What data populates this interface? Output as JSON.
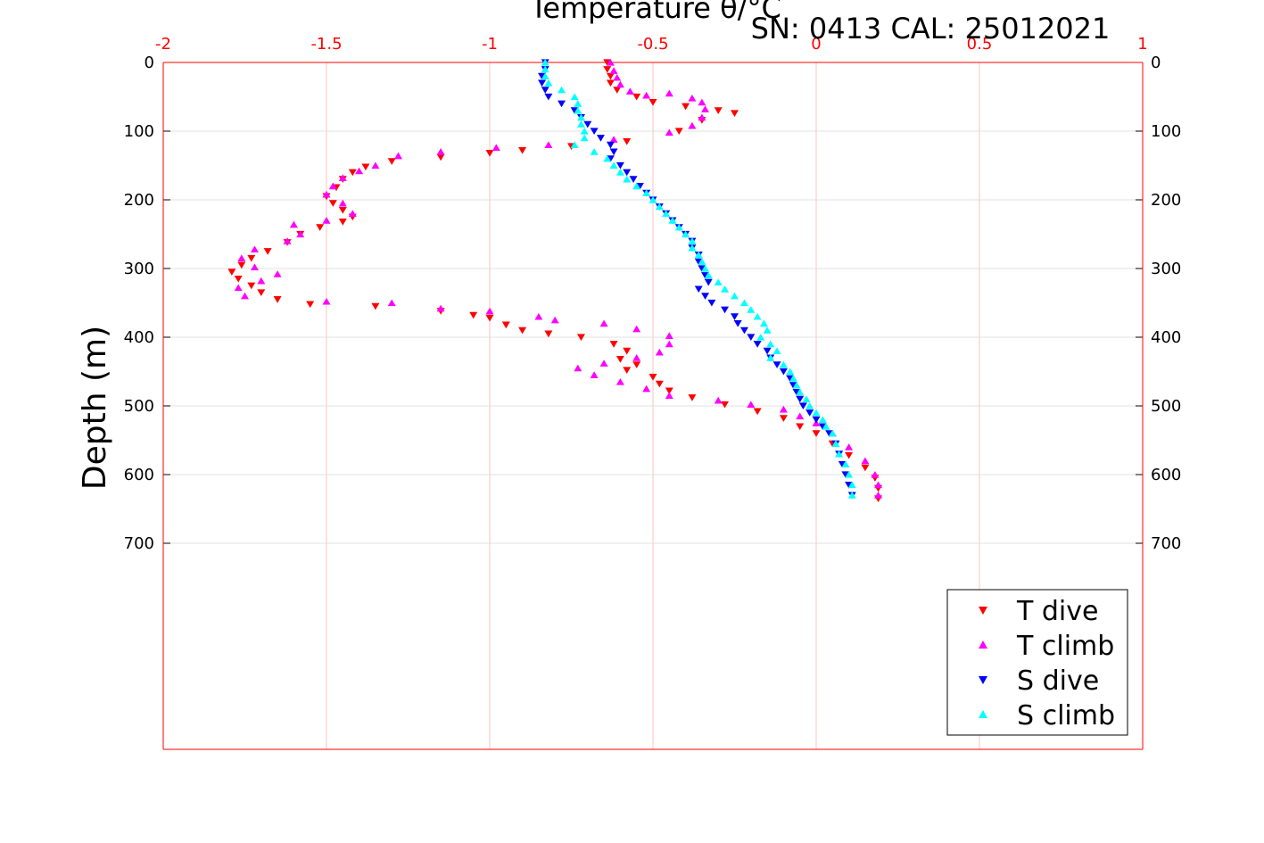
{
  "chart_data": {
    "type": "scatter",
    "title": "Temperature θ/°C",
    "subtitle": "SN: 0413  CAL: 25012021",
    "xlabel": "",
    "ylabel": "Depth (m)",
    "xlim": [
      -2,
      1
    ],
    "ylim": [
      0,
      1000
    ],
    "y_reversed": true,
    "x_ticks": [
      "-2",
      "-1.5",
      "-1",
      "-0.5",
      "0",
      "0.5",
      "1"
    ],
    "x_tick_values": [
      -2,
      -1.5,
      -1,
      -0.5,
      0,
      0.5,
      1
    ],
    "y_ticks": [
      "0",
      "100",
      "200",
      "300",
      "400",
      "500",
      "600",
      "700"
    ],
    "y_tick_values": [
      0,
      100,
      200,
      300,
      400,
      500,
      600,
      700
    ],
    "axis_color": "#ff0000",
    "grid": true,
    "legend_position": "bottom-right",
    "series": [
      {
        "name": "T dive",
        "marker": "triangle-down",
        "color": "#ff0000",
        "points": [
          [
            -0.64,
            0
          ],
          [
            -0.64,
            10
          ],
          [
            -0.63,
            20
          ],
          [
            -0.63,
            30
          ],
          [
            -0.61,
            40
          ],
          [
            -0.55,
            50
          ],
          [
            -0.5,
            58
          ],
          [
            -0.4,
            64
          ],
          [
            -0.3,
            70
          ],
          [
            -0.25,
            74
          ],
          [
            -0.35,
            84
          ],
          [
            -0.42,
            100
          ],
          [
            -0.58,
            115
          ],
          [
            -0.75,
            122
          ],
          [
            -0.9,
            128
          ],
          [
            -1.0,
            132
          ],
          [
            -1.15,
            138
          ],
          [
            -1.3,
            144
          ],
          [
            -1.38,
            152
          ],
          [
            -1.42,
            160
          ],
          [
            -1.45,
            170
          ],
          [
            -1.47,
            182
          ],
          [
            -1.5,
            195
          ],
          [
            -1.48,
            205
          ],
          [
            -1.45,
            215
          ],
          [
            -1.42,
            225
          ],
          [
            -1.45,
            232
          ],
          [
            -1.52,
            240
          ],
          [
            -1.58,
            250
          ],
          [
            -1.62,
            262
          ],
          [
            -1.68,
            275
          ],
          [
            -1.73,
            285
          ],
          [
            -1.76,
            295
          ],
          [
            -1.79,
            305
          ],
          [
            -1.77,
            315
          ],
          [
            -1.73,
            325
          ],
          [
            -1.7,
            335
          ],
          [
            -1.65,
            345
          ],
          [
            -1.55,
            352
          ],
          [
            -1.35,
            355
          ],
          [
            -1.15,
            362
          ],
          [
            -1.05,
            368
          ],
          [
            -1.0,
            372
          ],
          [
            -0.95,
            382
          ],
          [
            -0.9,
            390
          ],
          [
            -0.82,
            395
          ],
          [
            -0.72,
            400
          ],
          [
            -0.62,
            410
          ],
          [
            -0.58,
            420
          ],
          [
            -0.6,
            432
          ],
          [
            -0.55,
            440
          ],
          [
            -0.58,
            448
          ],
          [
            -0.5,
            458
          ],
          [
            -0.48,
            468
          ],
          [
            -0.45,
            478
          ],
          [
            -0.38,
            488
          ],
          [
            -0.28,
            498
          ],
          [
            -0.18,
            508
          ],
          [
            -0.1,
            518
          ],
          [
            -0.05,
            530
          ],
          [
            0.0,
            540
          ],
          [
            0.05,
            555
          ],
          [
            0.1,
            572
          ],
          [
            0.15,
            590
          ],
          [
            0.18,
            605
          ],
          [
            0.19,
            620
          ],
          [
            0.19,
            635
          ]
        ]
      },
      {
        "name": "T climb",
        "marker": "triangle-up",
        "color": "#ff00ff",
        "points": [
          [
            -0.63,
            0
          ],
          [
            -0.62,
            12
          ],
          [
            -0.61,
            22
          ],
          [
            -0.6,
            32
          ],
          [
            -0.57,
            42
          ],
          [
            -0.52,
            48
          ],
          [
            -0.45,
            45
          ],
          [
            -0.38,
            52
          ],
          [
            -0.35,
            58
          ],
          [
            -0.34,
            68
          ],
          [
            -0.35,
            80
          ],
          [
            -0.38,
            92
          ],
          [
            -0.45,
            102
          ],
          [
            -0.62,
            112
          ],
          [
            -0.82,
            120
          ],
          [
            -0.98,
            124
          ],
          [
            -1.15,
            130
          ],
          [
            -1.28,
            136
          ],
          [
            -1.35,
            150
          ],
          [
            -1.4,
            158
          ],
          [
            -1.45,
            168
          ],
          [
            -1.48,
            180
          ],
          [
            -1.5,
            192
          ],
          [
            -1.45,
            205
          ],
          [
            -1.42,
            220
          ],
          [
            -1.5,
            230
          ],
          [
            -1.6,
            236
          ],
          [
            -1.58,
            250
          ],
          [
            -1.62,
            260
          ],
          [
            -1.72,
            272
          ],
          [
            -1.76,
            285
          ],
          [
            -1.72,
            298
          ],
          [
            -1.65,
            308
          ],
          [
            -1.7,
            318
          ],
          [
            -1.77,
            328
          ],
          [
            -1.75,
            340
          ],
          [
            -1.5,
            348
          ],
          [
            -1.3,
            350
          ],
          [
            -1.15,
            358
          ],
          [
            -1.0,
            362
          ],
          [
            -0.85,
            370
          ],
          [
            -0.8,
            375
          ],
          [
            -0.65,
            380
          ],
          [
            -0.55,
            388
          ],
          [
            -0.45,
            398
          ],
          [
            -0.45,
            410
          ],
          [
            -0.48,
            422
          ],
          [
            -0.55,
            430
          ],
          [
            -0.65,
            438
          ],
          [
            -0.73,
            445
          ],
          [
            -0.68,
            455
          ],
          [
            -0.6,
            465
          ],
          [
            -0.52,
            475
          ],
          [
            -0.45,
            485
          ],
          [
            -0.3,
            492
          ],
          [
            -0.2,
            498
          ],
          [
            -0.1,
            505
          ],
          [
            -0.05,
            515
          ],
          [
            0.0,
            525
          ],
          [
            0.05,
            540
          ],
          [
            0.1,
            560
          ],
          [
            0.15,
            580
          ],
          [
            0.18,
            600
          ],
          [
            0.19,
            615
          ],
          [
            0.19,
            630
          ]
        ]
      },
      {
        "name": "S dive",
        "marker": "triangle-down",
        "color": "#0000ff",
        "points": [
          [
            -0.83,
            0
          ],
          [
            -0.83,
            10
          ],
          [
            -0.84,
            20
          ],
          [
            -0.84,
            30
          ],
          [
            -0.83,
            40
          ],
          [
            -0.82,
            50
          ],
          [
            -0.78,
            60
          ],
          [
            -0.74,
            70
          ],
          [
            -0.72,
            80
          ],
          [
            -0.7,
            90
          ],
          [
            -0.68,
            100
          ],
          [
            -0.66,
            110
          ],
          [
            -0.63,
            120
          ],
          [
            -0.62,
            130
          ],
          [
            -0.63,
            140
          ],
          [
            -0.6,
            150
          ],
          [
            -0.58,
            160
          ],
          [
            -0.56,
            170
          ],
          [
            -0.54,
            180
          ],
          [
            -0.52,
            190
          ],
          [
            -0.5,
            200
          ],
          [
            -0.48,
            210
          ],
          [
            -0.46,
            220
          ],
          [
            -0.44,
            230
          ],
          [
            -0.42,
            240
          ],
          [
            -0.4,
            250
          ],
          [
            -0.38,
            260
          ],
          [
            -0.38,
            270
          ],
          [
            -0.36,
            280
          ],
          [
            -0.36,
            290
          ],
          [
            -0.35,
            300
          ],
          [
            -0.34,
            310
          ],
          [
            -0.33,
            320
          ],
          [
            -0.36,
            330
          ],
          [
            -0.34,
            340
          ],
          [
            -0.32,
            350
          ],
          [
            -0.28,
            360
          ],
          [
            -0.25,
            370
          ],
          [
            -0.24,
            380
          ],
          [
            -0.22,
            390
          ],
          [
            -0.2,
            400
          ],
          [
            -0.18,
            410
          ],
          [
            -0.15,
            420
          ],
          [
            -0.14,
            430
          ],
          [
            -0.12,
            440
          ],
          [
            -0.1,
            450
          ],
          [
            -0.08,
            460
          ],
          [
            -0.07,
            470
          ],
          [
            -0.06,
            480
          ],
          [
            -0.05,
            490
          ],
          [
            -0.04,
            500
          ],
          [
            -0.02,
            510
          ],
          [
            0.0,
            520
          ],
          [
            0.02,
            530
          ],
          [
            0.04,
            540
          ],
          [
            0.06,
            555
          ],
          [
            0.07,
            570
          ],
          [
            0.08,
            585
          ],
          [
            0.09,
            600
          ],
          [
            0.1,
            615
          ],
          [
            0.11,
            630
          ]
        ]
      },
      {
        "name": "S climb",
        "marker": "triangle-up",
        "color": "#00ffff",
        "points": [
          [
            -0.83,
            0
          ],
          [
            -0.83,
            10
          ],
          [
            -0.83,
            20
          ],
          [
            -0.82,
            30
          ],
          [
            -0.78,
            40
          ],
          [
            -0.74,
            50
          ],
          [
            -0.73,
            60
          ],
          [
            -0.73,
            70
          ],
          [
            -0.72,
            80
          ],
          [
            -0.72,
            90
          ],
          [
            -0.71,
            100
          ],
          [
            -0.71,
            110
          ],
          [
            -0.74,
            120
          ],
          [
            -0.68,
            130
          ],
          [
            -0.64,
            140
          ],
          [
            -0.62,
            150
          ],
          [
            -0.6,
            160
          ],
          [
            -0.58,
            170
          ],
          [
            -0.55,
            180
          ],
          [
            -0.52,
            190
          ],
          [
            -0.5,
            200
          ],
          [
            -0.48,
            210
          ],
          [
            -0.46,
            220
          ],
          [
            -0.44,
            230
          ],
          [
            -0.42,
            240
          ],
          [
            -0.4,
            250
          ],
          [
            -0.38,
            260
          ],
          [
            -0.38,
            270
          ],
          [
            -0.36,
            280
          ],
          [
            -0.35,
            290
          ],
          [
            -0.34,
            300
          ],
          [
            -0.33,
            310
          ],
          [
            -0.3,
            320
          ],
          [
            -0.28,
            330
          ],
          [
            -0.25,
            340
          ],
          [
            -0.22,
            350
          ],
          [
            -0.2,
            360
          ],
          [
            -0.18,
            370
          ],
          [
            -0.16,
            380
          ],
          [
            -0.15,
            390
          ],
          [
            -0.17,
            400
          ],
          [
            -0.14,
            410
          ],
          [
            -0.12,
            420
          ],
          [
            -0.14,
            430
          ],
          [
            -0.1,
            440
          ],
          [
            -0.08,
            450
          ],
          [
            -0.07,
            460
          ],
          [
            -0.06,
            470
          ],
          [
            -0.05,
            480
          ],
          [
            -0.03,
            490
          ],
          [
            -0.02,
            500
          ],
          [
            0.0,
            510
          ],
          [
            0.02,
            520
          ],
          [
            0.03,
            530
          ],
          [
            0.05,
            540
          ],
          [
            0.06,
            555
          ],
          [
            0.07,
            570
          ],
          [
            0.09,
            585
          ],
          [
            0.1,
            600
          ],
          [
            0.11,
            615
          ],
          [
            0.11,
            630
          ]
        ]
      }
    ]
  }
}
